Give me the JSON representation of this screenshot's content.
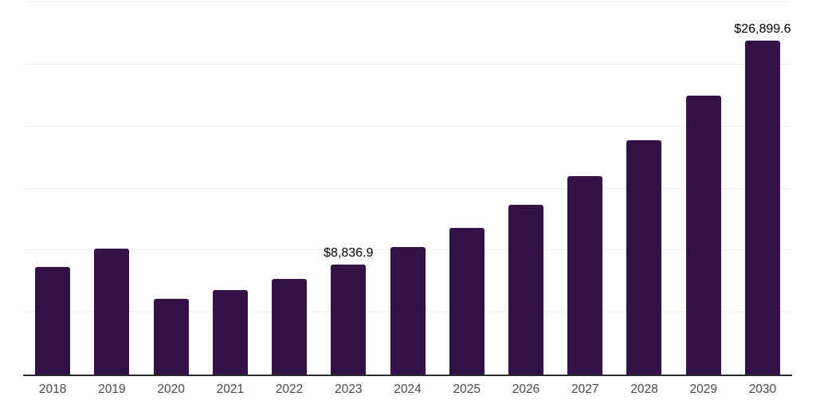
{
  "chart_data": {
    "type": "bar",
    "title": "",
    "xlabel": "",
    "ylabel": "",
    "categories": [
      "2018",
      "2019",
      "2020",
      "2021",
      "2022",
      "2023",
      "2024",
      "2025",
      "2026",
      "2027",
      "2028",
      "2029",
      "2030"
    ],
    "values": [
      8700,
      10150,
      6100,
      6800,
      7700,
      8836.9,
      10250,
      11800,
      13700,
      16000,
      18900,
      22500,
      26899.6
    ],
    "data_labels": {
      "2023": "$8,836.9",
      "2030": "$26,899.6"
    },
    "ylim": [
      0,
      30000
    ],
    "grid_interval": 5000,
    "grid": "horizontal gridlines, no y-axis tick labels",
    "legend_position": "none",
    "colors": {
      "bar": "#321247",
      "gridline": "#f0f0f0",
      "axis_line": "#2b2b2b",
      "tick_label": "#4a4a4a",
      "value_label": "#000000",
      "background": "#ffffff"
    }
  }
}
